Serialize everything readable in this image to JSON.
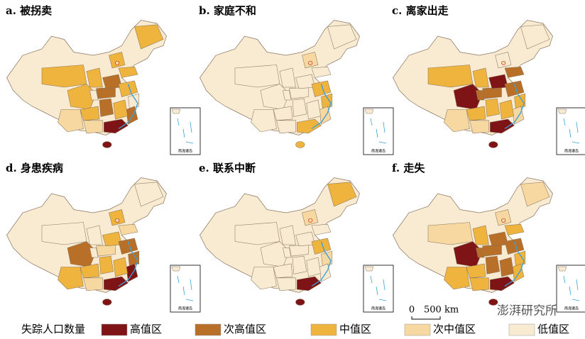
{
  "panels": [
    {
      "title": "a. 被拐卖"
    },
    {
      "title": "b. 家庭不和"
    },
    {
      "title": "c. 离家出走"
    },
    {
      "title": "d. 身患疾病"
    },
    {
      "title": "e. 联系中断"
    },
    {
      "title": "f. 走失"
    }
  ],
  "inset_label": "南海诸岛",
  "scale_bar": {
    "start": "0",
    "end": "500 km"
  },
  "watermark": "澎湃研究所",
  "legend": {
    "title": "失踪人口数量",
    "items": [
      {
        "label": "高值区",
        "color": "#7f1416"
      },
      {
        "label": "次高值区",
        "color": "#b86f28"
      },
      {
        "label": "中值区",
        "color": "#efb43e"
      },
      {
        "label": "次中值区",
        "color": "#f6d8a0"
      },
      {
        "label": "低值区",
        "color": "#f9ebd1"
      }
    ]
  }
}
